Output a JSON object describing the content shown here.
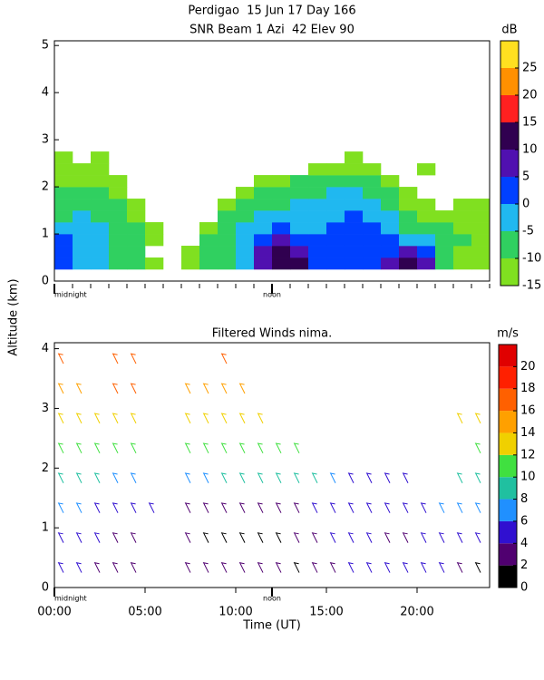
{
  "chart_data": [
    {
      "type": "heatmap",
      "title": "Perdigao  15 Jun 17 Day 166",
      "subtitle": "SNR Beam 1 Azi  42 Elev 90",
      "ylabel": "Altitude (km)",
      "x_bins": [
        0,
        1,
        2,
        3,
        4,
        5,
        6,
        7,
        8,
        9,
        10,
        11,
        12,
        13,
        14,
        15,
        16,
        17,
        18,
        19,
        20,
        21,
        22,
        23,
        24
      ],
      "y_bins": [
        0.25,
        0.5,
        0.75,
        1.0,
        1.25,
        1.5,
        1.75,
        2.0,
        2.25,
        2.5,
        2.75
      ],
      "values": [
        [
          0,
          -3,
          -5,
          -8,
          -10,
          -12,
          null,
          -12,
          -10,
          -8,
          -3,
          5,
          14,
          12,
          3,
          2,
          0,
          3,
          5,
          10,
          8,
          -10,
          -12,
          -12
        ],
        [
          2,
          -2,
          -5,
          -8,
          -10,
          null,
          null,
          -12,
          -10,
          -7,
          -2,
          8,
          12,
          8,
          2,
          3,
          2,
          3,
          4,
          5,
          0,
          -8,
          -12,
          -12
        ],
        [
          3,
          -1,
          -4,
          -6,
          -10,
          -12,
          null,
          null,
          -10,
          -7,
          -3,
          3,
          6,
          3,
          0,
          2,
          3,
          2,
          0,
          -3,
          -5,
          -8,
          -10,
          -12
        ],
        [
          -3,
          -2,
          -4,
          -7,
          -10,
          -12,
          null,
          null,
          -12,
          -8,
          -5,
          -3,
          0,
          -2,
          -3,
          0,
          2,
          0,
          -4,
          -8,
          -10,
          -10,
          -12,
          -12
        ],
        [
          -6,
          -5,
          -6,
          -10,
          -12,
          null,
          null,
          null,
          null,
          -10,
          -8,
          -5,
          -3,
          -4,
          -4,
          -1,
          0,
          -2,
          -5,
          -10,
          -12,
          -12,
          -12,
          -12
        ],
        [
          -8,
          -8,
          -8,
          -10,
          -12,
          null,
          null,
          null,
          null,
          -12,
          -10,
          -8,
          -6,
          -5,
          -5,
          -3,
          -1,
          -4,
          -8,
          -12,
          -13,
          null,
          -12,
          -12
        ],
        [
          -10,
          -10,
          -10,
          -12,
          null,
          null,
          null,
          null,
          null,
          null,
          -12,
          -10,
          -8,
          -8,
          -7,
          -4,
          -3,
          -6,
          -10,
          -12,
          null,
          null,
          null,
          null
        ],
        [
          -12,
          -12,
          -12,
          -13,
          null,
          null,
          null,
          null,
          null,
          null,
          null,
          -12,
          -12,
          -10,
          -10,
          -9,
          -8,
          -10,
          -12,
          null,
          null,
          null,
          null,
          null
        ],
        [
          -12,
          -13,
          -13,
          null,
          null,
          null,
          null,
          null,
          null,
          null,
          null,
          null,
          null,
          null,
          -13,
          -12,
          -13,
          -13,
          null,
          null,
          -13,
          null,
          null,
          null
        ],
        [
          -13,
          null,
          -13,
          null,
          null,
          null,
          null,
          null,
          null,
          null,
          null,
          null,
          null,
          null,
          null,
          null,
          -13,
          null,
          null,
          null,
          null,
          null,
          null,
          null
        ]
      ],
      "xlim": [
        0,
        24
      ],
      "ylim": [
        0,
        5.1
      ],
      "yticks": [
        0,
        1,
        2,
        3,
        4,
        5
      ],
      "xticks": [
        {
          "value": 0,
          "label": "midnight"
        },
        {
          "value": 12,
          "label": "noon"
        }
      ],
      "colorbar": {
        "label": "dB",
        "levels": [
          -15,
          -10,
          -5,
          0,
          5,
          10,
          15,
          20,
          25,
          30
        ],
        "colors": [
          "#80e020",
          "#30d060",
          "#20b8f0",
          "#0040ff",
          "#5010b0",
          "#300050",
          "#ff2020",
          "#ff9000",
          "#ffe020"
        ],
        "ticks": [
          -15,
          -10,
          -5,
          0,
          5,
          10,
          15,
          20,
          25
        ]
      }
    },
    {
      "type": "barbs",
      "title": "Filtered Winds nima.",
      "xlabel": "Time (UT)",
      "x": [
        0.5,
        1.5,
        2.5,
        3.5,
        4.5,
        5.5,
        6.5,
        7.5,
        8.5,
        9.5,
        10.5,
        11.5,
        12.5,
        13.5,
        14.5,
        15.5,
        16.5,
        17.5,
        18.5,
        19.5,
        20.5,
        21.5,
        22.5,
        23.5
      ],
      "y": [
        0.25,
        0.75,
        1.25,
        1.75,
        2.25,
        2.75,
        3.25,
        3.75
      ],
      "values": [
        [
          4,
          4,
          3,
          2,
          3,
          null,
          null,
          3,
          3,
          3,
          3,
          2,
          2,
          1,
          2,
          3,
          4,
          4,
          4,
          4,
          4,
          4,
          3,
          1
        ],
        [
          5,
          5,
          4,
          3,
          3,
          null,
          null,
          2,
          1,
          1,
          1,
          1,
          1,
          2,
          3,
          4,
          4,
          4,
          3,
          3,
          4,
          5,
          5,
          5
        ],
        [
          7,
          6,
          5,
          4,
          5,
          5,
          null,
          3,
          2,
          2,
          2,
          3,
          3,
          3,
          4,
          4,
          5,
          4,
          4,
          4,
          5,
          6,
          6,
          7
        ],
        [
          9,
          8,
          8,
          7,
          7,
          null,
          null,
          7,
          7,
          8,
          8,
          8,
          8,
          8,
          8,
          6,
          5,
          4,
          4,
          5,
          null,
          null,
          8,
          9
        ],
        [
          11,
          11,
          10,
          10,
          10,
          null,
          null,
          11,
          11,
          11,
          11,
          11,
          10,
          10,
          null,
          null,
          null,
          null,
          null,
          null,
          null,
          null,
          null,
          10
        ],
        [
          13,
          13,
          12,
          12,
          12,
          null,
          null,
          12,
          13,
          13,
          13,
          13,
          null,
          null,
          null,
          null,
          null,
          null,
          null,
          null,
          null,
          null,
          12,
          13
        ],
        [
          14,
          14,
          null,
          16,
          16,
          null,
          null,
          15,
          15,
          15,
          15,
          null,
          null,
          null,
          null,
          null,
          null,
          null,
          null,
          null,
          null,
          null,
          null,
          null
        ],
        [
          16,
          null,
          null,
          16,
          17,
          null,
          null,
          null,
          null,
          17,
          null,
          null,
          null,
          null,
          null,
          null,
          null,
          null,
          null,
          null,
          null,
          null,
          null,
          null
        ]
      ],
      "xlim": [
        0,
        24
      ],
      "ylim": [
        0,
        4.1
      ],
      "yticks": [
        0,
        1,
        2,
        3,
        4
      ],
      "xticks": [
        {
          "value": 0,
          "label": "00:00"
        },
        {
          "value": 5,
          "label": "05:00"
        },
        {
          "value": 10,
          "label": "10:00"
        },
        {
          "value": 15,
          "label": "15:00"
        },
        {
          "value": 20,
          "label": "20:00"
        }
      ],
      "day_marks": [
        {
          "value": 0,
          "label": "midnight"
        },
        {
          "value": 12,
          "label": "noon"
        }
      ],
      "colorbar": {
        "label": "m/s",
        "levels": [
          0,
          2,
          4,
          6,
          8,
          10,
          12,
          14,
          16,
          18,
          20,
          22
        ],
        "colors": [
          "#000000",
          "#500070",
          "#3010d0",
          "#2090ff",
          "#20c0a0",
          "#40e040",
          "#f0d000",
          "#ffa000",
          "#ff6000",
          "#ff2000",
          "#e00000"
        ],
        "ticks": [
          0,
          2,
          4,
          6,
          8,
          10,
          12,
          14,
          16,
          18,
          20
        ]
      }
    }
  ]
}
